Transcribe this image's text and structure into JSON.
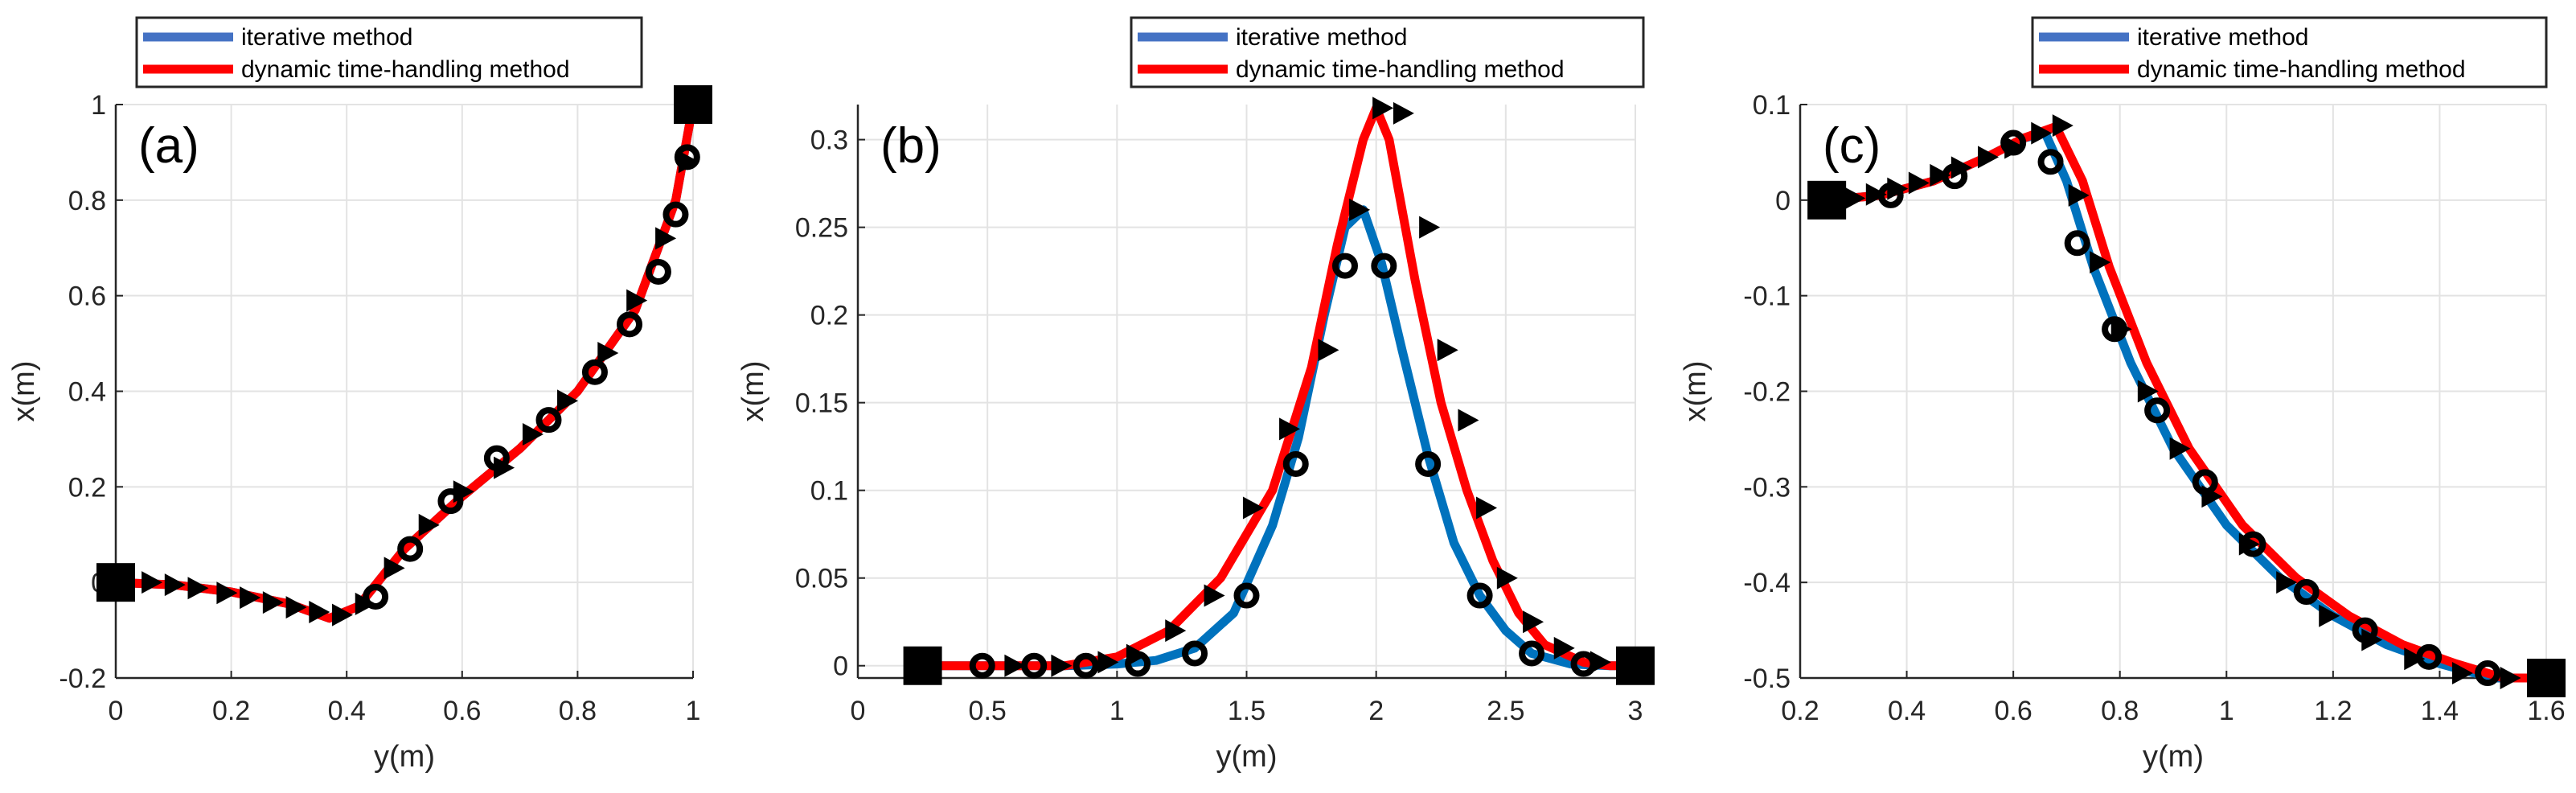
{
  "figure": {
    "legend_labels": [
      "iterative method",
      "dynamic time-handling method"
    ]
  },
  "chart_data": [
    {
      "type": "line",
      "panel_label": "(a)",
      "xlabel": "y(m)",
      "ylabel": "x(m)",
      "xlim": [
        0,
        1
      ],
      "ylim": [
        -0.2,
        1
      ],
      "xticks": [
        0,
        0.2,
        0.4,
        0.6,
        0.8,
        1
      ],
      "xtick_labels": [
        "0",
        "0.2",
        "0.4",
        "0.6",
        "0.8",
        "1"
      ],
      "yticks": [
        -0.2,
        0,
        0.2,
        0.4,
        0.6,
        0.8,
        1
      ],
      "ytick_labels": [
        "-0.2",
        "0",
        "0.2",
        "0.4",
        "0.6",
        "0.8",
        "1"
      ],
      "grid": true,
      "legend_position": "top",
      "colors": {
        "iterative": "#0072bd",
        "dynamic": "#ff0000",
        "legend_blue": "#4472c4",
        "marker": "#000000"
      },
      "series": [
        {
          "name": "iterative method",
          "x": [
            0,
            0.1,
            0.2,
            0.3,
            0.37,
            0.42,
            0.5,
            0.6,
            0.7,
            0.8,
            0.9,
            0.97,
            1.0
          ],
          "y": [
            0,
            -0.005,
            -0.02,
            -0.045,
            -0.075,
            -0.05,
            0.07,
            0.18,
            0.28,
            0.4,
            0.57,
            0.8,
            1.0
          ]
        },
        {
          "name": "dynamic time-handling method",
          "x": [
            0,
            0.1,
            0.2,
            0.3,
            0.37,
            0.42,
            0.5,
            0.6,
            0.7,
            0.8,
            0.9,
            0.97,
            1.0
          ],
          "y": [
            0,
            -0.005,
            -0.02,
            -0.045,
            -0.075,
            -0.05,
            0.07,
            0.18,
            0.28,
            0.4,
            0.57,
            0.8,
            1.0
          ]
        }
      ],
      "circle_markers": {
        "x": [
          0.45,
          0.51,
          0.58,
          0.66,
          0.75,
          0.83,
          0.89,
          0.94,
          0.97,
          0.99
        ],
        "y": [
          -0.03,
          0.07,
          0.17,
          0.26,
          0.34,
          0.44,
          0.54,
          0.65,
          0.77,
          0.89
        ]
      },
      "triangle_markers": {
        "x": [
          0.06,
          0.1,
          0.14,
          0.19,
          0.23,
          0.27,
          0.31,
          0.35,
          0.39,
          0.43,
          0.48,
          0.54,
          0.6,
          0.67,
          0.72,
          0.78,
          0.85,
          0.9,
          0.95,
          0.99
        ],
        "y": [
          0,
          -0.005,
          -0.012,
          -0.022,
          -0.032,
          -0.042,
          -0.052,
          -0.062,
          -0.068,
          -0.045,
          0.03,
          0.12,
          0.19,
          0.24,
          0.31,
          0.38,
          0.48,
          0.59,
          0.72,
          0.88
        ]
      },
      "square_markers": {
        "x": [
          0,
          1
        ],
        "y": [
          0,
          1
        ]
      }
    },
    {
      "type": "line",
      "panel_label": "(b)",
      "xlabel": "y(m)",
      "ylabel": "x(m)",
      "xlim": [
        0,
        3
      ],
      "ylim": [
        -0.007,
        0.32
      ],
      "xticks": [
        0,
        0.5,
        1,
        1.5,
        2,
        2.5,
        3
      ],
      "xtick_labels": [
        "0",
        "0.5",
        "1",
        "1.5",
        "2",
        "2.5",
        "3"
      ],
      "yticks": [
        0,
        0.05,
        0.1,
        0.15,
        0.2,
        0.25,
        0.3
      ],
      "ytick_labels": [
        "0",
        "0.05",
        "0.1",
        "0.15",
        "0.2",
        "0.25",
        "0.3"
      ],
      "grid": true,
      "legend_position": "top",
      "colors": {
        "iterative": "#0072bd",
        "dynamic": "#ff0000",
        "legend_blue": "#4472c4",
        "marker": "#000000"
      },
      "series": [
        {
          "name": "iterative method",
          "x": [
            0.25,
            0.5,
            0.8,
            1.0,
            1.15,
            1.3,
            1.45,
            1.6,
            1.7,
            1.8,
            1.88,
            1.95,
            2.02,
            2.1,
            2.2,
            2.3,
            2.4,
            2.5,
            2.6,
            2.75,
            2.9,
            3.0
          ],
          "y": [
            0,
            0,
            0,
            0.001,
            0.003,
            0.01,
            0.03,
            0.08,
            0.13,
            0.2,
            0.25,
            0.26,
            0.23,
            0.18,
            0.12,
            0.07,
            0.04,
            0.02,
            0.007,
            0.001,
            0,
            0
          ]
        },
        {
          "name": "dynamic time-handling method",
          "x": [
            0.25,
            0.5,
            0.8,
            1.0,
            1.2,
            1.4,
            1.6,
            1.75,
            1.85,
            1.95,
            2.0,
            2.05,
            2.15,
            2.25,
            2.35,
            2.45,
            2.55,
            2.65,
            2.8,
            2.9,
            3.0
          ],
          "y": [
            0,
            0,
            0,
            0.005,
            0.02,
            0.05,
            0.1,
            0.17,
            0.24,
            0.3,
            0.318,
            0.3,
            0.22,
            0.15,
            0.1,
            0.06,
            0.03,
            0.012,
            0.002,
            0,
            0
          ]
        }
      ],
      "circle_markers": {
        "x": [
          0.48,
          0.68,
          0.88,
          1.08,
          1.3,
          1.5,
          1.69,
          1.88,
          2.03,
          2.2,
          2.4,
          2.6,
          2.8
        ],
        "y": [
          0,
          0,
          0,
          0.001,
          0.007,
          0.04,
          0.115,
          0.228,
          0.228,
          0.115,
          0.04,
          0.007,
          0.001
        ]
      },
      "triangle_markers": {
        "x": [
          0.6,
          0.78,
          0.96,
          1.07,
          1.22,
          1.37,
          1.52,
          1.66,
          1.81,
          1.93,
          2.02,
          2.1,
          2.2,
          2.27,
          2.35,
          2.42,
          2.5,
          2.6,
          2.72,
          2.86
        ],
        "y": [
          0,
          0,
          0.002,
          0.006,
          0.02,
          0.04,
          0.09,
          0.135,
          0.18,
          0.26,
          0.318,
          0.315,
          0.25,
          0.18,
          0.14,
          0.09,
          0.05,
          0.025,
          0.01,
          0.002
        ]
      },
      "square_markers": {
        "x": [
          0.25,
          3.0
        ],
        "y": [
          0,
          0
        ]
      }
    },
    {
      "type": "line",
      "panel_label": "(c)",
      "xlabel": "y(m)",
      "ylabel": "x(m)",
      "xlim": [
        0.2,
        1.6
      ],
      "ylim": [
        -0.5,
        0.1
      ],
      "xticks": [
        0.2,
        0.4,
        0.6,
        0.8,
        1,
        1.2,
        1.4,
        1.6
      ],
      "xtick_labels": [
        "0.2",
        "0.4",
        "0.6",
        "0.8",
        "1",
        "1.2",
        "1.4",
        "1.6"
      ],
      "yticks": [
        -0.5,
        -0.4,
        -0.3,
        -0.2,
        -0.1,
        0,
        0.1
      ],
      "ytick_labels": [
        "-0.5",
        "-0.4",
        "-0.3",
        "-0.2",
        "-0.1",
        "0",
        "0.1"
      ],
      "grid": true,
      "legend_position": "top",
      "colors": {
        "iterative": "#0072bd",
        "dynamic": "#ff0000",
        "legend_blue": "#4472c4",
        "marker": "#000000"
      },
      "series": [
        {
          "name": "iterative method",
          "x": [
            0.25,
            0.35,
            0.45,
            0.55,
            0.62,
            0.66,
            0.7,
            0.75,
            0.82,
            0.9,
            1.0,
            1.1,
            1.2,
            1.3,
            1.4,
            1.5,
            1.6
          ],
          "y": [
            0,
            0.005,
            0.02,
            0.045,
            0.065,
            0.07,
            0.02,
            -0.07,
            -0.17,
            -0.26,
            -0.34,
            -0.395,
            -0.435,
            -0.465,
            -0.485,
            -0.5,
            -0.5
          ]
        },
        {
          "name": "dynamic time-handling method",
          "x": [
            0.25,
            0.35,
            0.45,
            0.55,
            0.62,
            0.68,
            0.73,
            0.78,
            0.85,
            0.93,
            1.03,
            1.13,
            1.23,
            1.33,
            1.43,
            1.52,
            1.6
          ],
          "y": [
            0,
            0.005,
            0.02,
            0.045,
            0.065,
            0.077,
            0.02,
            -0.07,
            -0.17,
            -0.26,
            -0.34,
            -0.395,
            -0.435,
            -0.465,
            -0.485,
            -0.5,
            -0.5
          ]
        }
      ],
      "circle_markers": {
        "x": [
          0.37,
          0.49,
          0.6,
          0.67,
          0.72,
          0.79,
          0.87,
          0.96,
          1.05,
          1.15,
          1.26,
          1.38,
          1.49
        ],
        "y": [
          0.005,
          0.025,
          0.06,
          0.04,
          -0.045,
          -0.135,
          -0.22,
          -0.295,
          -0.36,
          -0.41,
          -0.45,
          -0.478,
          -0.495
        ]
      },
      "triangle_markers": {
        "x": [
          0.3,
          0.34,
          0.38,
          0.42,
          0.46,
          0.5,
          0.55,
          0.6,
          0.65,
          0.69,
          0.72,
          0.76,
          0.8,
          0.85,
          0.91,
          0.97,
          1.04,
          1.11,
          1.19,
          1.27,
          1.35,
          1.44,
          1.53
        ],
        "y": [
          0.002,
          0.006,
          0.012,
          0.018,
          0.026,
          0.034,
          0.045,
          0.055,
          0.07,
          0.078,
          0.005,
          -0.065,
          -0.135,
          -0.2,
          -0.26,
          -0.31,
          -0.36,
          -0.4,
          -0.435,
          -0.46,
          -0.48,
          -0.495,
          -0.5
        ]
      },
      "square_markers": {
        "x": [
          0.25,
          1.6
        ],
        "y": [
          0,
          -0.5
        ]
      }
    }
  ]
}
